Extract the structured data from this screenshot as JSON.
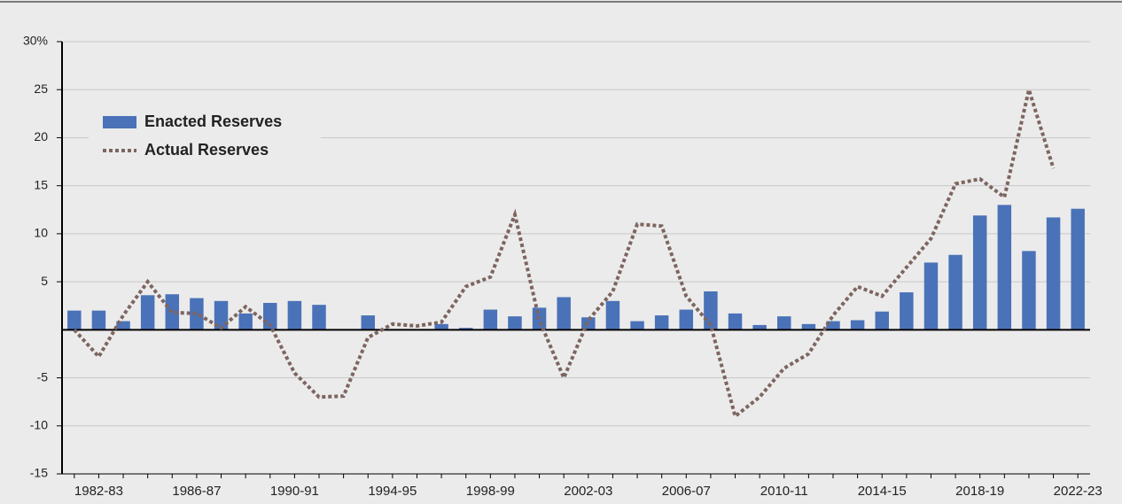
{
  "chart_data": {
    "type": "bar_line",
    "categories": [
      null,
      "1982-83",
      null,
      null,
      null,
      "1986-87",
      null,
      null,
      null,
      "1990-91",
      null,
      null,
      null,
      "1994-95",
      null,
      null,
      null,
      "1998-99",
      null,
      null,
      null,
      "2002-03",
      null,
      null,
      null,
      "2006-07",
      null,
      null,
      null,
      "2010-11",
      null,
      null,
      null,
      "2014-15",
      null,
      null,
      null,
      "2018-19",
      null,
      null,
      null,
      "2022-23"
    ],
    "series": [
      {
        "name": "Enacted Reserves",
        "color": "#4a72b8",
        "type": "bar",
        "values": [
          2.0,
          2.0,
          0.9,
          3.6,
          3.7,
          3.3,
          3.0,
          1.7,
          2.8,
          3.0,
          2.6,
          0,
          1.5,
          0,
          0,
          0.6,
          0.2,
          2.1,
          1.4,
          2.3,
          3.4,
          1.3,
          3.0,
          0.9,
          1.5,
          2.1,
          4.0,
          1.7,
          0.5,
          1.4,
          0.6,
          0.9,
          1.0,
          1.9,
          3.9,
          7.0,
          7.8,
          11.9,
          13.0,
          8.2,
          11.7,
          12.6
        ]
      },
      {
        "name": "Actual Reserves",
        "color": "#7d6560",
        "type": "line",
        "values": [
          0,
          -2.8,
          1.5,
          5.0,
          1.8,
          1.7,
          0.2,
          2.4,
          0.5,
          -4.5,
          -7.0,
          -6.9,
          -0.8,
          0.6,
          0.4,
          0.8,
          4.5,
          5.5,
          12.0,
          1.0,
          -5.0,
          1.0,
          4.0,
          11.0,
          10.8,
          3.5,
          0.5,
          -9.0,
          -7.0,
          -4.0,
          -2.5,
          1.5,
          4.5,
          3.5,
          6.5,
          9.5,
          15.2,
          15.7,
          13.8,
          25.0,
          16.8,
          null
        ]
      }
    ],
    "ylim": [
      -15,
      30
    ],
    "yticks": [
      -15,
      -10,
      -5,
      5,
      10,
      15,
      20,
      25,
      {
        "value": 30,
        "label": "30%"
      }
    ],
    "grid": true,
    "legend": "upper left"
  }
}
